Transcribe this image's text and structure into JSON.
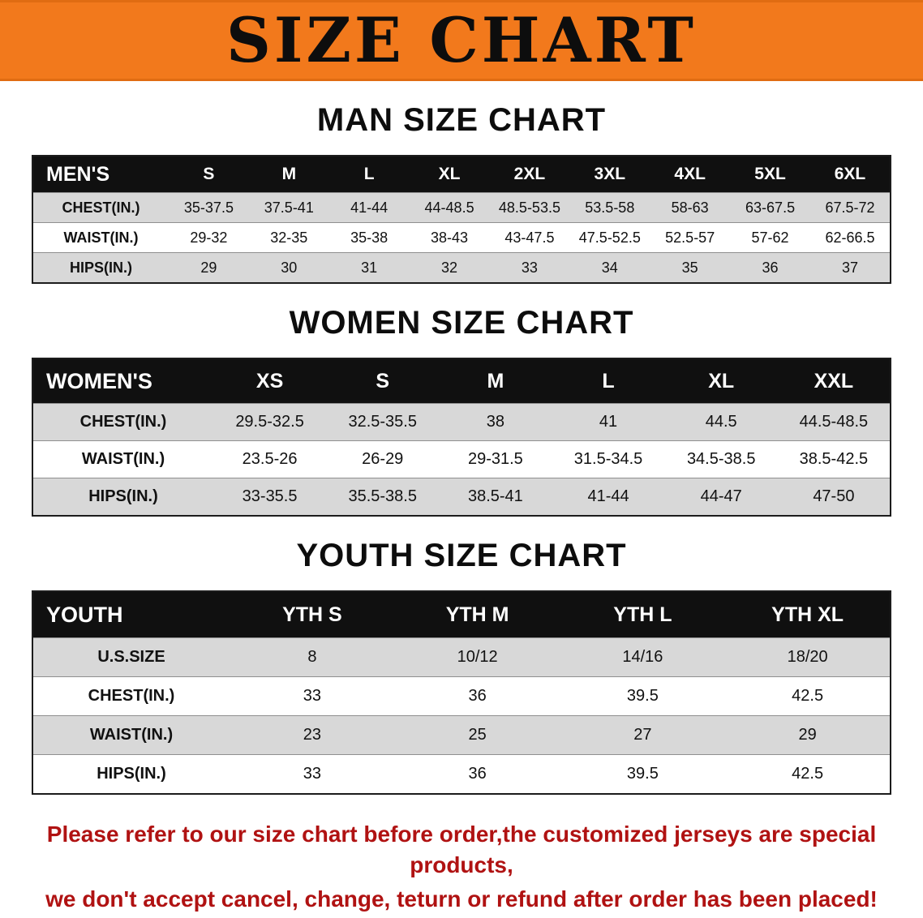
{
  "banner": {
    "title": "SIZE CHART"
  },
  "colors": {
    "banner_bg": "#F2791C",
    "table_header_bg": "#101010",
    "table_header_text": "#FFFFFF",
    "row_alt_bg": "#D8D8D8",
    "disclaimer_text": "#B01212"
  },
  "chart_data": [
    {
      "type": "table",
      "title": "MAN SIZE CHART",
      "columns": [
        "MEN'S",
        "S",
        "M",
        "L",
        "XL",
        "2XL",
        "3XL",
        "4XL",
        "5XL",
        "6XL"
      ],
      "rows": [
        [
          "CHEST(IN.)",
          "35-37.5",
          "37.5-41",
          "41-44",
          "44-48.5",
          "48.5-53.5",
          "53.5-58",
          "58-63",
          "63-67.5",
          "67.5-72"
        ],
        [
          "WAIST(IN.)",
          "29-32",
          "32-35",
          "35-38",
          "38-43",
          "43-47.5",
          "47.5-52.5",
          "52.5-57",
          "57-62",
          "62-66.5"
        ],
        [
          "HIPS(IN.)",
          "29",
          "30",
          "31",
          "32",
          "33",
          "34",
          "35",
          "36",
          "37"
        ]
      ]
    },
    {
      "type": "table",
      "title": "WOMEN SIZE CHART",
      "columns": [
        "WOMEN'S",
        "XS",
        "S",
        "M",
        "L",
        "XL",
        "XXL"
      ],
      "rows": [
        [
          "CHEST(IN.)",
          "29.5-32.5",
          "32.5-35.5",
          "38",
          "41",
          "44.5",
          "44.5-48.5"
        ],
        [
          "WAIST(IN.)",
          "23.5-26",
          "26-29",
          "29-31.5",
          "31.5-34.5",
          "34.5-38.5",
          "38.5-42.5"
        ],
        [
          "HIPS(IN.)",
          "33-35.5",
          "35.5-38.5",
          "38.5-41",
          "41-44",
          "44-47",
          "47-50"
        ]
      ]
    },
    {
      "type": "table",
      "title": "YOUTH SIZE CHART",
      "columns": [
        "YOUTH",
        "YTH S",
        "YTH M",
        "YTH L",
        "YTH XL"
      ],
      "rows": [
        [
          "U.S.SIZE",
          "8",
          "10/12",
          "14/16",
          "18/20"
        ],
        [
          "CHEST(IN.)",
          "33",
          "36",
          "39.5",
          "42.5"
        ],
        [
          "WAIST(IN.)",
          "23",
          "25",
          "27",
          "29"
        ],
        [
          "HIPS(IN.)",
          "33",
          "36",
          "39.5",
          "42.5"
        ]
      ]
    }
  ],
  "disclaimer": {
    "line1": "Please refer to our size chart before order,the customized jerseys are special products,",
    "line2": "we don't accept cancel, change, teturn or refund after order has been placed!"
  }
}
